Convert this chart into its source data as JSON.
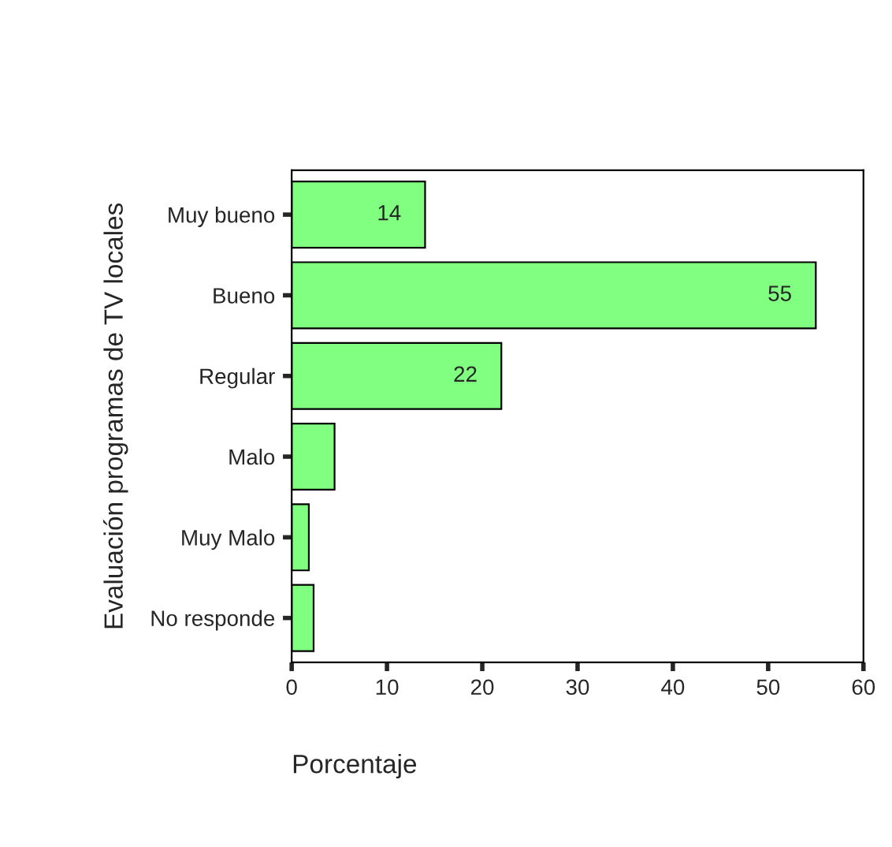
{
  "chart_data": {
    "type": "bar",
    "orientation": "horizontal",
    "ylabel": "Evaluación programas de TV locales",
    "xlabel": "Porcentaje",
    "categories": [
      "Muy bueno",
      "Bueno",
      "Regular",
      "Malo",
      "Muy Malo",
      "No responde"
    ],
    "values": [
      14,
      55,
      22,
      4.5,
      1.8,
      2.3
    ],
    "value_labels": [
      "14",
      "55",
      "22",
      null,
      null,
      null
    ],
    "color": "#80ff80",
    "xlim": [
      0,
      60
    ],
    "xticks": [
      0,
      10,
      20,
      30,
      40,
      50,
      60
    ],
    "grid": false,
    "legend": false
  }
}
